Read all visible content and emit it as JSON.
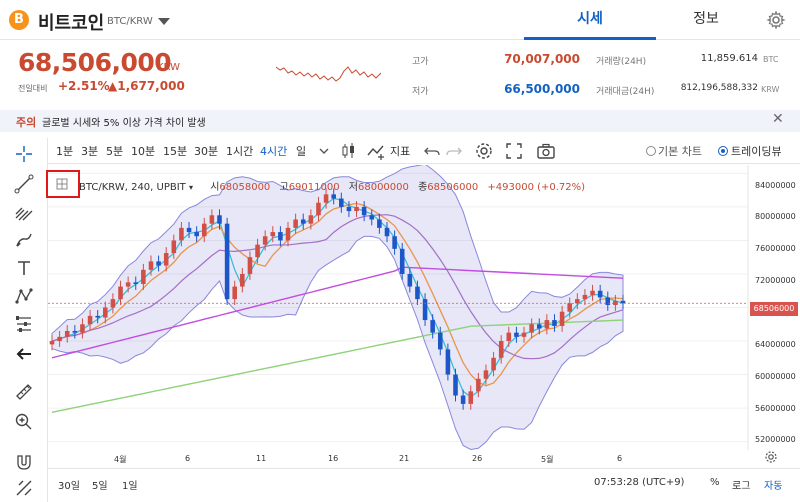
{
  "header": {
    "coin_symbol": "B",
    "coin_name": "비트코인",
    "pair": "BTC/KRW",
    "tabs": [
      "시세",
      "정보"
    ]
  },
  "summary": {
    "price": "68,506,000",
    "currency": "KRW",
    "change_label": "전일대비",
    "change_pct": "+2.51%",
    "change_amt": "▲1,677,000",
    "high_label": "고가",
    "high": "70,007,000",
    "low_label": "저가",
    "low": "66,500,000",
    "volume_label": "거래량(24H)",
    "volume": "11,859.614",
    "volume_unit": "BTC",
    "amount_label": "거래대금(24H)",
    "amount": "812,196,588,332",
    "amount_unit": "KRW",
    "up_color": "#c84a31",
    "down_color": "#1261c4"
  },
  "notice": {
    "tag": "주의",
    "text": "글로벌 시세와 5% 이상 가격 차이 발생"
  },
  "toolbar": {
    "timeframes": [
      "1분",
      "3분",
      "5분",
      "10분",
      "15분",
      "30분",
      "1시간",
      "4시간",
      "일"
    ],
    "active_timeframe": "4시간",
    "indicator_label": "지표",
    "basic_chart": "기본 차트",
    "trading_view": "트레이딩뷰"
  },
  "chart": {
    "legend_title": "BTC/KRW, 240, UPBIT",
    "open_label": "시",
    "open": "68058000",
    "high_label": "고",
    "high": "69011000",
    "low_label": "저",
    "low": "68000000",
    "close_label": "종",
    "close": "68506000",
    "change": "+493000 (+0.72%)",
    "current_price_tag": "68506000",
    "y_ticks": [
      "84000000",
      "80000000",
      "76000000",
      "72000000",
      "68000000",
      "64000000",
      "60000000",
      "56000000",
      "52000000"
    ],
    "x_ticks": [
      "4월",
      "6",
      "11",
      "16",
      "21",
      "26",
      "5월",
      "6"
    ]
  },
  "chart_data": {
    "type": "candlestick",
    "ylim": [
      51000000,
      85000000
    ],
    "x_ticks": [
      "4월",
      "6",
      "11",
      "16",
      "21",
      "26",
      "5월",
      "6"
    ],
    "closes": [
      64000000,
      64500000,
      65200000,
      65000000,
      66000000,
      67000000,
      66800000,
      68000000,
      69000000,
      70500000,
      71000000,
      70800000,
      72500000,
      73500000,
      73000000,
      74500000,
      76000000,
      77500000,
      77000000,
      76500000,
      78000000,
      79000000,
      78000000,
      69000000,
      70500000,
      72000000,
      74000000,
      75500000,
      76500000,
      77000000,
      76000000,
      77500000,
      78500000,
      78000000,
      79000000,
      80500000,
      81500000,
      81000000,
      80000000,
      79500000,
      80000000,
      79000000,
      78500000,
      77500000,
      76500000,
      75000000,
      72000000,
      70500000,
      69000000,
      66500000,
      65000000,
      63000000,
      60000000,
      57500000,
      56500000,
      58000000,
      59500000,
      60500000,
      62000000,
      64000000,
      65000000,
      64500000,
      65000000,
      66000000,
      65500000,
      66500000,
      65800000,
      67500000,
      68500000,
      69000000,
      69500000,
      70000000,
      69200000,
      68300000,
      68800000,
      68506000
    ],
    "moving_averages": [
      "MA short (cyan)",
      "MA mid (orange)",
      "MA long (purple)",
      "MA long-term (green)"
    ],
    "current_price": 68506000
  },
  "bottom": {
    "ranges": [
      "30일",
      "5일",
      "1일"
    ],
    "clock": "07:53:28 (UTC+9)",
    "opts": [
      "%",
      "로그",
      "자동"
    ]
  }
}
